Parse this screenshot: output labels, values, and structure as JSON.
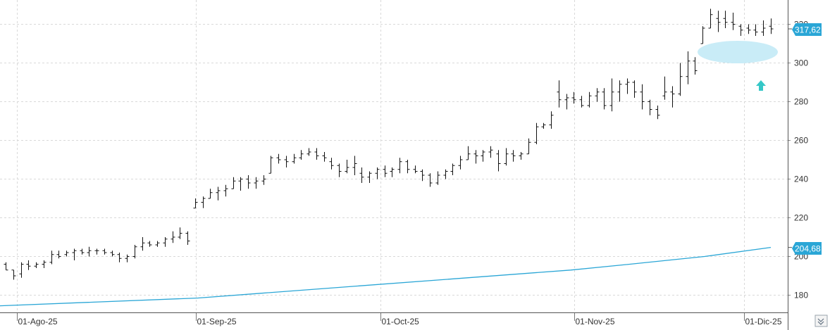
{
  "chart_data": {
    "type": "ohlc",
    "y_range": [
      170,
      330
    ],
    "y_ticks": [
      180,
      200,
      220,
      240,
      260,
      280,
      300,
      320
    ],
    "grid": true,
    "x_labels": [
      "01-Ago-25",
      "01-Sep-25",
      "01-Oct-25",
      "01-Nov-25",
      "01-Dic-25"
    ],
    "colors": {
      "bars": "#111111",
      "ma_line": "#2aa6d6",
      "badge": "#2aa6d6",
      "highlight": "#c9ecf7",
      "arrow": "#35c7c7",
      "grid": "#d9d9d9"
    },
    "series": [
      {
        "label": "317,62",
        "bars": [
          [
            196,
            197,
            193,
            193
          ],
          [
            193,
            193,
            188,
            190
          ],
          [
            191,
            197,
            189,
            196
          ],
          [
            196,
            198,
            193,
            195
          ],
          [
            195,
            197,
            194,
            196
          ],
          [
            196,
            198,
            194,
            197
          ],
          [
            197,
            203,
            196,
            201
          ],
          [
            201,
            203,
            199,
            200
          ],
          [
            201,
            203,
            200,
            202
          ],
          [
            202,
            204,
            198,
            203
          ],
          [
            203,
            204,
            201,
            202
          ],
          [
            202,
            205,
            200,
            203
          ],
          [
            203,
            204,
            201,
            203
          ],
          [
            203,
            204,
            201,
            202
          ],
          [
            202,
            203,
            200,
            201
          ],
          [
            201,
            202,
            197,
            199
          ],
          [
            199,
            201,
            197,
            200
          ],
          [
            200,
            206,
            199,
            205
          ],
          [
            205,
            210,
            203,
            207
          ],
          [
            207,
            208,
            205,
            206
          ],
          [
            206,
            208,
            205,
            207
          ],
          [
            207,
            210,
            205,
            209
          ],
          [
            209,
            213,
            207,
            210
          ],
          [
            210,
            215,
            209,
            212
          ],
          [
            212,
            213,
            206,
            208
          ],
          [
            225,
            230,
            225,
            228
          ],
          [
            228,
            231,
            225,
            230
          ],
          [
            230,
            235,
            230,
            233
          ],
          [
            233,
            236,
            229,
            234
          ],
          [
            234,
            237,
            231,
            235
          ],
          [
            235,
            241,
            235,
            239
          ],
          [
            239,
            241,
            234,
            240
          ],
          [
            240,
            242,
            235,
            238
          ],
          [
            238,
            241,
            235,
            239
          ],
          [
            239,
            242,
            237,
            240
          ],
          [
            243,
            252,
            243,
            251
          ],
          [
            251,
            253,
            248,
            250
          ],
          [
            250,
            252,
            246,
            249
          ],
          [
            249,
            253,
            248,
            251
          ],
          [
            251,
            255,
            250,
            253
          ],
          [
            253,
            256,
            252,
            254
          ],
          [
            254,
            256,
            250,
            252
          ],
          [
            252,
            254,
            249,
            251
          ],
          [
            249,
            251,
            245,
            247
          ],
          [
            247,
            248,
            241,
            244
          ],
          [
            244,
            250,
            243,
            246
          ],
          [
            246,
            252,
            242,
            248
          ],
          [
            243,
            246,
            238,
            241
          ],
          [
            241,
            244,
            238,
            243
          ],
          [
            243,
            246,
            240,
            245
          ],
          [
            245,
            247,
            241,
            243
          ],
          [
            244,
            246,
            241,
            245
          ],
          [
            245,
            251,
            243,
            249
          ],
          [
            249,
            250,
            243,
            245
          ],
          [
            245,
            247,
            243,
            244
          ],
          [
            244,
            245,
            239,
            242
          ],
          [
            242,
            243,
            236,
            238
          ],
          [
            238,
            244,
            237,
            242
          ],
          [
            242,
            245,
            240,
            244
          ],
          [
            244,
            248,
            242,
            247
          ],
          [
            247,
            252,
            245,
            250
          ],
          [
            250,
            257,
            250,
            253
          ],
          [
            253,
            255,
            248,
            252
          ],
          [
            252,
            255,
            249,
            254
          ],
          [
            254,
            257,
            251,
            255
          ],
          [
            253,
            255,
            244,
            248
          ],
          [
            248,
            256,
            247,
            253
          ],
          [
            253,
            255,
            249,
            252
          ],
          [
            252,
            254,
            250,
            253
          ],
          [
            253,
            261,
            253,
            259
          ],
          [
            259,
            269,
            258,
            267
          ],
          [
            267,
            269,
            266,
            268
          ],
          [
            268,
            275,
            266,
            273
          ],
          [
            285,
            291,
            277,
            281
          ],
          [
            281,
            284,
            276,
            282
          ],
          [
            282,
            285,
            279,
            281
          ],
          [
            281,
            283,
            277,
            278
          ],
          [
            278,
            285,
            277,
            283
          ],
          [
            283,
            287,
            280,
            285
          ],
          [
            285,
            287,
            276,
            278
          ],
          [
            278,
            292,
            275,
            285
          ],
          [
            285,
            291,
            280,
            289
          ],
          [
            289,
            292,
            284,
            290
          ],
          [
            290,
            291,
            282,
            285
          ],
          [
            285,
            289,
            276,
            280
          ],
          [
            280,
            281,
            273,
            276
          ],
          [
            276,
            278,
            271,
            273
          ],
          [
            283,
            293,
            281,
            285
          ],
          [
            285,
            288,
            277,
            284
          ],
          [
            284,
            300,
            283,
            293
          ],
          [
            293,
            306,
            289,
            301
          ],
          [
            301,
            303,
            294,
            296
          ],
          [
            310,
            319,
            310,
            318
          ],
          [
            318,
            328,
            318,
            325
          ],
          [
            323,
            327,
            316,
            321
          ],
          [
            323,
            327,
            318,
            321
          ],
          [
            321,
            326,
            317,
            320
          ],
          [
            319,
            320,
            314,
            317
          ],
          [
            318,
            320,
            315,
            317
          ],
          [
            317,
            320,
            314,
            316
          ],
          [
            316,
            322,
            314,
            318
          ],
          [
            319,
            323,
            315,
            317.62
          ]
        ]
      },
      {
        "label": "204,68",
        "ma_points": [
          [
            0,
            174.5
          ],
          [
            280,
            178.5
          ],
          [
            370,
            181
          ],
          [
            810,
            193
          ],
          [
            880,
            195.5
          ],
          [
            1000,
            200
          ],
          [
            1094,
            204.68
          ]
        ]
      }
    ]
  },
  "badges": {
    "last_price": "317,62",
    "ma_value": "204,68"
  },
  "icons": [
    "up-arrow-icon",
    "scroll-arrows-icon"
  ]
}
